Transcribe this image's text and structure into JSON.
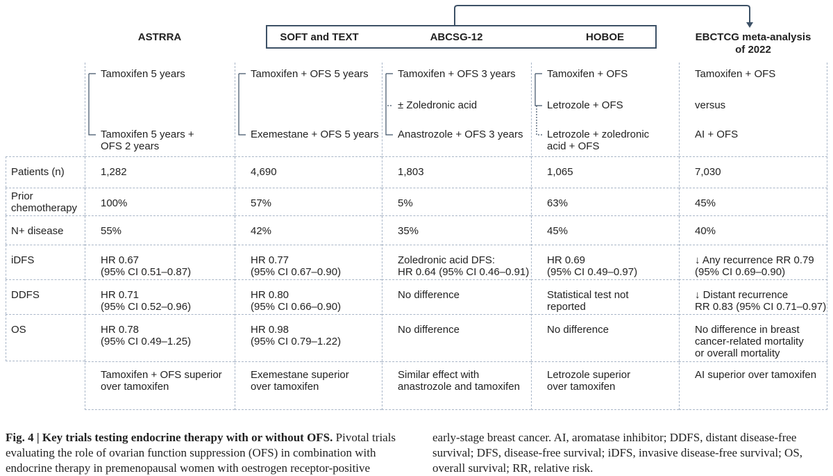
{
  "columns": [
    "ASTRRA",
    "SOFT and TEXT",
    "ABCSG-12",
    "HOBOE",
    "EBCTCG meta-analysis\nof 2022"
  ],
  "arms": [
    [
      "Tamoxifen 5 years",
      "Tamoxifen 5 years +\nOFS 2 years"
    ],
    [
      "Tamoxifen + OFS 5 years",
      "Exemestane + OFS 5 years"
    ],
    [
      "Tamoxifen + OFS 3 years",
      "± Zoledronic acid",
      "Anastrozole + OFS 3 years"
    ],
    [
      "Tamoxifen + OFS",
      "Letrozole + OFS",
      "Letrozole + zoledronic\nacid + OFS"
    ],
    [
      "Tamoxifen + OFS",
      "versus",
      "AI + OFS"
    ]
  ],
  "rows": [
    {
      "label": "Patients (n)",
      "cells": [
        "1,282",
        "4,690",
        "1,803",
        "1,065",
        "7,030"
      ]
    },
    {
      "label": "Prior\nchemotherapy",
      "cells": [
        "100%",
        "57%",
        "5%",
        "63%",
        "45%"
      ]
    },
    {
      "label": "N+ disease",
      "cells": [
        "55%",
        "42%",
        "35%",
        "45%",
        "40%"
      ]
    },
    {
      "label": "iDFS",
      "cells": [
        "HR 0.67\n(95% CI 0.51–0.87)",
        "HR 0.77\n(95% CI 0.67–0.90)",
        "Zoledronic acid DFS:\nHR 0.64 (95% CI 0.46–0.91)",
        "HR 0.69\n(95% CI 0.49–0.97)",
        "↓ Any recurrence RR 0.79\n(95% CI 0.69–0.90)"
      ]
    },
    {
      "label": "DDFS",
      "cells": [
        "HR 0.71\n(95% CI 0.52–0.96)",
        "HR 0.80\n(95% CI 0.66–0.90)",
        "No difference",
        "Statistical test not\nreported",
        "↓ Distant recurrence\nRR 0.83 (95% CI 0.71–0.97)"
      ]
    },
    {
      "label": "OS",
      "cells": [
        "HR 0.78\n(95% CI 0.49–1.25)",
        "HR 0.98\n(95% CI 0.79–1.22)",
        "No difference",
        "No difference",
        "No difference in breast\ncancer-related mortality\nor overall mortality"
      ]
    }
  ],
  "conclusions": [
    "Tamoxifen + OFS superior\nover tamoxifen",
    "Exemestane superior\nover tamoxifen",
    "Similar effect with\nanastrozole and tamoxifen",
    "Letrozole superior\nover tamoxifen",
    "AI superior over tamoxifen"
  ],
  "caption": {
    "title": "Fig. 4 | Key trials testing endocrine therapy with or without OFS.",
    "text": "Pivotal trials evaluating the role of ovarian function suppression (OFS) in combination with endocrine therapy in premenopausal women with oestrogen receptor-positive early-stage breast cancer. AI, aromatase inhibitor; DDFS, distant disease-free survival; DFS, disease-free survival; iDFS, invasive disease-free survival; OS, overall survival; RR, relative risk."
  }
}
